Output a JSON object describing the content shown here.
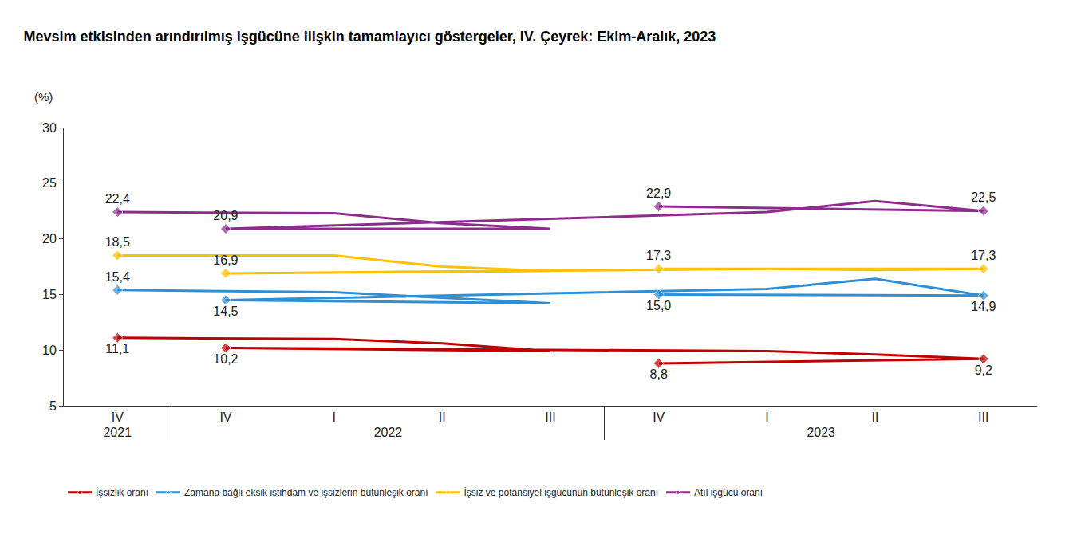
{
  "chart_data": {
    "type": "line",
    "title": "Mevsim etkisinden arındırılmış işgücüne ilişkin tamamlayıcı göstergeler, IV. Çeyrek: Ekim-Aralık, 2023",
    "ylabel": "(%)",
    "categories": [
      [
        "2021",
        "IV"
      ],
      [
        "2022",
        "I"
      ],
      [
        "2022",
        "II"
      ],
      [
        "2022",
        "III"
      ],
      [
        "2022",
        "IV"
      ],
      [
        "2023",
        "I"
      ],
      [
        "2023",
        "II"
      ],
      [
        "2023",
        "III"
      ],
      [
        "2023",
        "IV"
      ]
    ],
    "series": [
      {
        "name": "İşsizlik oranı",
        "color": "#C00000",
        "values": [
          11.1,
          11.0,
          10.6,
          9.9,
          10.2,
          9.9,
          9.6,
          9.2,
          8.8
        ],
        "value_labels": [
          "11,1",
          null,
          null,
          null,
          "10,2",
          null,
          null,
          "9,2",
          "8,8"
        ]
      },
      {
        "name": "Zamana bağlı eksik istihdam ve işsizlerin bütünleşik oranı",
        "color": "#2F8FD5",
        "values": [
          15.4,
          15.2,
          14.7,
          14.2,
          14.5,
          15.5,
          16.4,
          14.9,
          15.0
        ],
        "value_labels": [
          "15,4",
          null,
          null,
          null,
          "14,5",
          null,
          null,
          "14,9",
          "15,0"
        ]
      },
      {
        "name": "İşsiz ve potansiyel işgücünün bütünleşik oranı",
        "color": "#FFC000",
        "values": [
          18.5,
          18.5,
          17.5,
          17.1,
          16.9,
          17.3,
          17.2,
          17.3,
          17.3
        ],
        "value_labels": [
          "18,5",
          null,
          null,
          null,
          "16,9",
          null,
          null,
          "17,3",
          "17,3"
        ]
      },
      {
        "name": "Atıl işgücü oranı",
        "color": "#8E2C8E",
        "values": [
          22.4,
          22.3,
          21.4,
          20.9,
          20.9,
          22.4,
          23.4,
          22.5,
          22.9
        ],
        "value_labels": [
          "22,4",
          null,
          null,
          null,
          "20,9",
          null,
          null,
          "22,5",
          "22,9"
        ]
      }
    ],
    "ylim": [
      5,
      30
    ],
    "yticks": [
      5,
      10,
      15,
      20,
      25,
      30
    ],
    "grid": false,
    "legend": "bottom",
    "data_labels": true,
    "marker": "diamond",
    "line_style": "solid"
  }
}
